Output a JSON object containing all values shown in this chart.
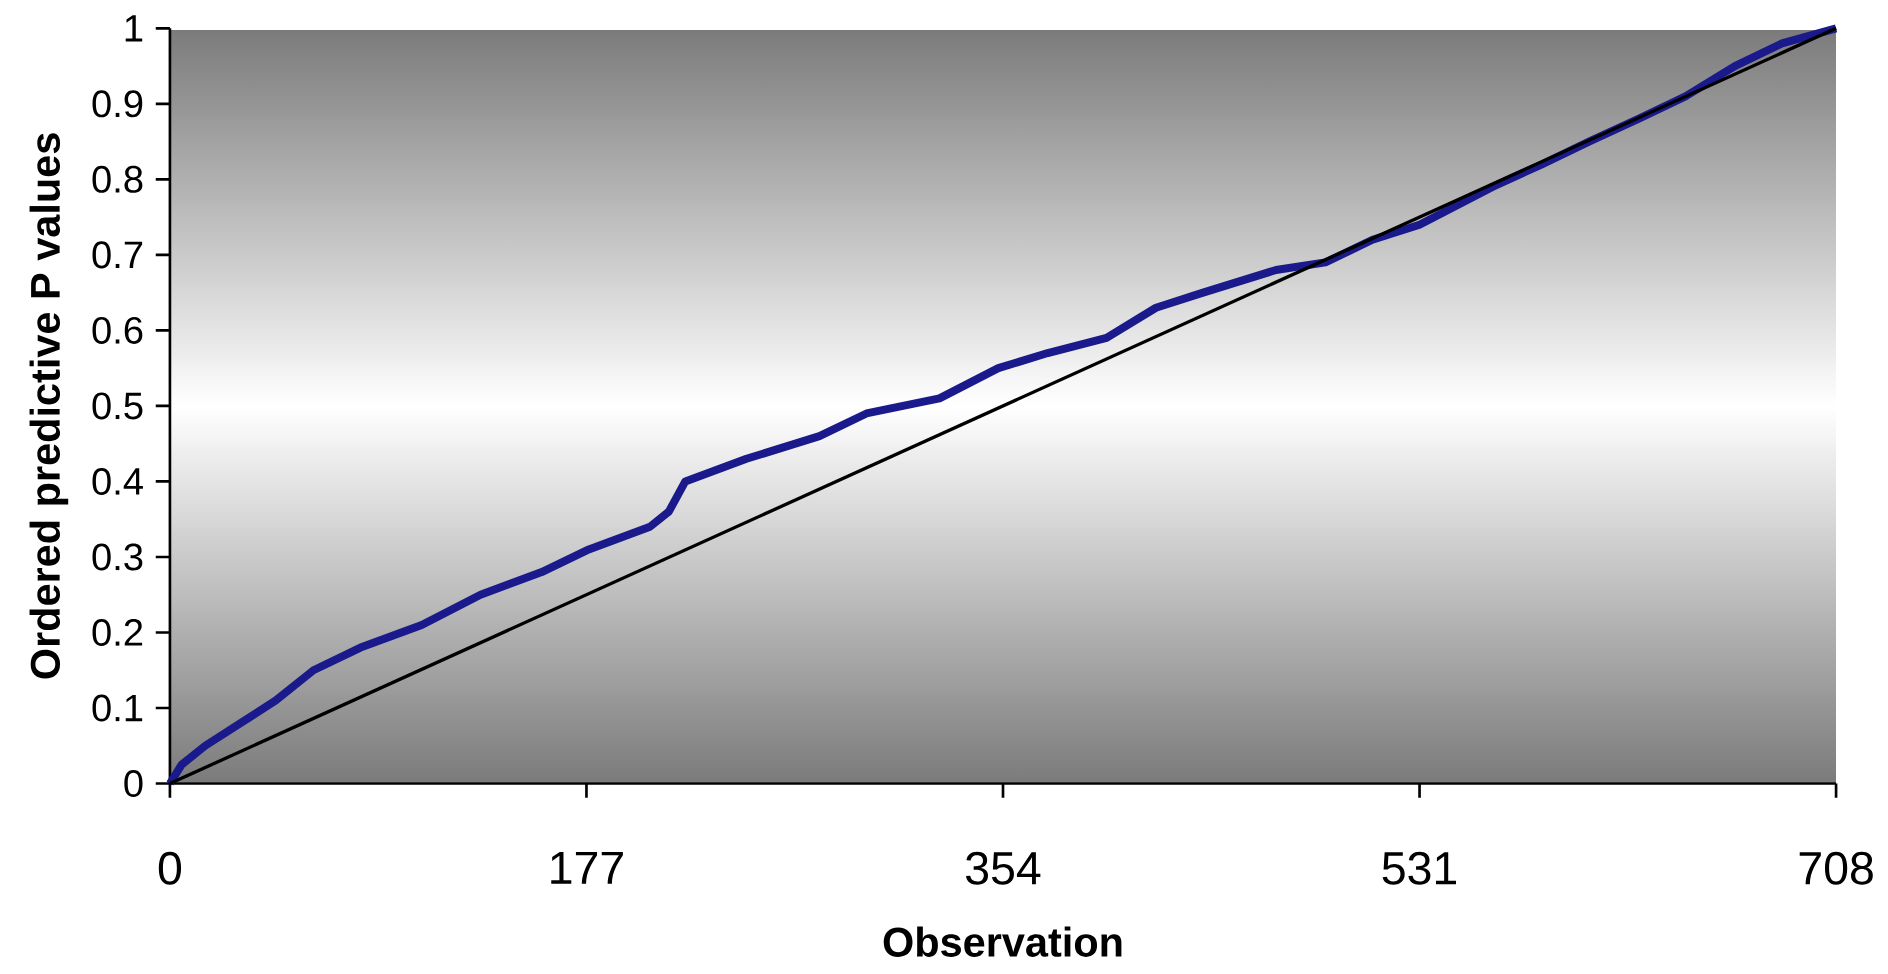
{
  "chart_data": {
    "type": "line",
    "xlabel": "Observation",
    "ylabel": "Ordered predictive P values",
    "xlim": [
      0,
      708
    ],
    "ylim": [
      0,
      1
    ],
    "xticks": [
      0,
      177,
      354,
      531,
      708
    ],
    "yticks": [
      0,
      0.1,
      0.2,
      0.3,
      0.4,
      0.5,
      0.6,
      0.7,
      0.8,
      0.9,
      1
    ],
    "series": [
      {
        "color": "#1a1a8c",
        "x": [
          0,
          5,
          15,
          30,
          45,
          61,
          81,
          107,
          132,
          158,
          178,
          204,
          212,
          219,
          245,
          276,
          296,
          327,
          352,
          373,
          398,
          419,
          439,
          470,
          491,
          511,
          531,
          562,
          583,
          603,
          624,
          644,
          665,
          685,
          708
        ],
        "values": [
          0,
          0.025,
          0.05,
          0.08,
          0.11,
          0.15,
          0.18,
          0.21,
          0.25,
          0.28,
          0.31,
          0.34,
          0.36,
          0.4,
          0.43,
          0.46,
          0.49,
          0.51,
          0.55,
          0.57,
          0.59,
          0.63,
          0.65,
          0.68,
          0.69,
          0.72,
          0.74,
          0.79,
          0.82,
          0.85,
          0.88,
          0.91,
          0.95,
          0.98,
          1
        ]
      },
      {
        "color": "#000000",
        "x": [
          0,
          708
        ],
        "values": [
          0,
          1
        ]
      }
    ]
  }
}
